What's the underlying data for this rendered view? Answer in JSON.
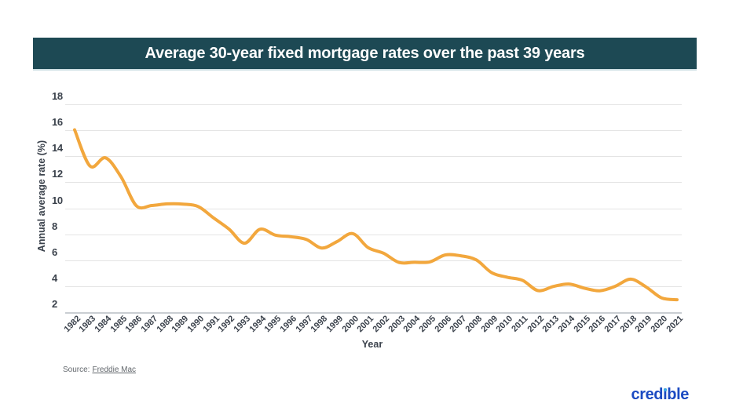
{
  "header": {
    "title": "Average 30-year fixed mortgage rates over the past 39 years"
  },
  "source": {
    "label": "Source:",
    "link_text": "Freddie Mac"
  },
  "logo": {
    "name": "credible",
    "prefix": "cred",
    "dotless_i": "ı",
    "suffix": "ble"
  },
  "colors": {
    "title_bar_bg": "#1d4954",
    "line": "#f2a73d",
    "gridline": "#e4e4e4",
    "axis_text": "#3b424c",
    "logo_blue": "#1b4ac2",
    "logo_dot": "#3ea7e1"
  },
  "chart_data": {
    "type": "line",
    "title": "Average 30-year fixed mortgage rates over the past 39 years",
    "xlabel": "Year",
    "ylabel": "Annual average rate (%)",
    "x": [
      1982,
      1983,
      1984,
      1985,
      1986,
      1987,
      1988,
      1989,
      1990,
      1991,
      1992,
      1993,
      1994,
      1995,
      1996,
      1997,
      1998,
      1999,
      2000,
      2001,
      2002,
      2003,
      2004,
      2005,
      2006,
      2007,
      2008,
      2009,
      2010,
      2011,
      2012,
      2013,
      2014,
      2015,
      2016,
      2017,
      2018,
      2019,
      2020,
      2021
    ],
    "values": [
      16.04,
      13.24,
      13.88,
      12.43,
      10.19,
      10.21,
      10.34,
      10.32,
      10.13,
      9.25,
      8.39,
      7.31,
      8.38,
      7.93,
      7.81,
      7.6,
      6.94,
      7.44,
      8.05,
      6.97,
      6.54,
      5.83,
      5.84,
      5.87,
      6.41,
      6.34,
      6.03,
      5.04,
      4.69,
      4.45,
      3.66,
      3.98,
      4.17,
      3.85,
      3.65,
      3.99,
      4.54,
      3.94,
      3.1,
      2.96
    ],
    "yticks": [
      18,
      16,
      14,
      12,
      10,
      8,
      6,
      4,
      2
    ],
    "ylim": [
      2,
      18
    ],
    "grid": "horizontal",
    "legend": "none",
    "line_color": "#f2a73d",
    "line_style": "smooth"
  }
}
